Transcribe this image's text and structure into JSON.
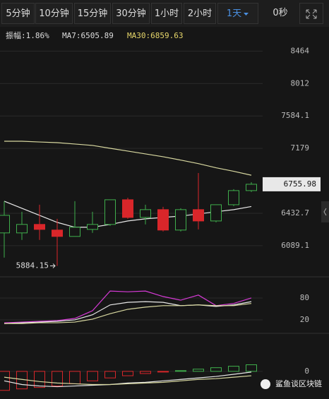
{
  "toolbar": {
    "tabs": [
      "5分钟",
      "10分钟",
      "15分钟",
      "30分钟",
      "1小时",
      "2小时",
      "1天"
    ],
    "active_tab": 6,
    "timer": "0秒"
  },
  "info": {
    "amplitude": "振幅:1.86%",
    "ma7": "MA7:6505.89",
    "ma30": "MA30:6859.63"
  },
  "watermark": "鲨鱼谈区块链",
  "chart_data": [
    {
      "type": "candlestick",
      "log": true,
      "ylim": [
        5790,
        8590
      ],
      "yticks": [
        8464,
        8012,
        7584.1,
        7179,
        6432.7,
        6089.1
      ],
      "up_color": "#3fae4c",
      "down_color": "#d9262a",
      "open": [
        6222,
        6222,
        6312,
        6252,
        6185,
        6259,
        6312,
        6581,
        6387,
        6472,
        6252,
        6472,
        6349,
        6526,
        6684
      ],
      "high": [
        6565,
        6449,
        6526,
        6372,
        6565,
        6449,
        6581,
        6604,
        6526,
        6503,
        6487,
        6886,
        6526,
        6700,
        6780
      ],
      "low": [
        5967,
        6148,
        6148,
        5884.15,
        6185,
        6222,
        6297,
        6372,
        6312,
        6237,
        6237,
        6259,
        6334,
        6511,
        6668
      ],
      "close": [
        6410,
        6312,
        6259,
        6185,
        6282,
        6312,
        6581,
        6387,
        6472,
        6252,
        6472,
        6349,
        6526,
        6684,
        6755.98
      ],
      "lines": [
        {
          "color": "#d8d8a0",
          "values": [
            7266,
            7266,
            7257,
            7249,
            7232,
            7215,
            7180,
            7146,
            7112,
            7078,
            7038,
            6996,
            6947,
            6906,
            6860
          ]
        },
        {
          "color": "#e8e8e8",
          "values": [
            6565,
            6487,
            6410,
            6334,
            6282,
            6282,
            6312,
            6349,
            6372,
            6387,
            6402,
            6425,
            6449,
            6472,
            6506
          ]
        }
      ]
    },
    {
      "type": "line",
      "ylim": [
        -13,
        138
      ],
      "yticks": [
        80,
        20
      ],
      "series": [
        {
          "color": "#d63ad6",
          "values": [
            12,
            14,
            16,
            18,
            24,
            45,
            99,
            97,
            99,
            84,
            74,
            88,
            59,
            65,
            80
          ]
        },
        {
          "color": "#e8e8e8",
          "values": [
            10,
            12,
            14,
            16,
            20,
            34,
            61,
            68,
            70,
            68,
            59,
            61,
            57,
            61,
            70
          ]
        },
        {
          "color": "#d8d8a0",
          "values": [
            10,
            10,
            12,
            12,
            14,
            22,
            37,
            49,
            55,
            59,
            59,
            61,
            59,
            59,
            65
          ]
        }
      ]
    },
    {
      "type": "bar",
      "ylim": [
        -33,
        52
      ],
      "yticks": [
        0
      ],
      "up_color": "#3fae4c",
      "down_color": "#d9262a",
      "values": [
        -26,
        -24,
        -22,
        -20,
        -17,
        -13,
        -9,
        -6,
        -3,
        -1,
        1,
        3,
        5,
        7,
        9
      ],
      "series": [
        {
          "color": "#e8e8e8",
          "values": [
            -13,
            -18,
            -20,
            -21,
            -20,
            -19,
            -18,
            -16,
            -15,
            -13,
            -11,
            -9,
            -7,
            -4,
            -1
          ]
        },
        {
          "color": "#d8d8a0",
          "values": [
            -8,
            -11,
            -14,
            -16,
            -17,
            -18,
            -18,
            -17,
            -16,
            -15,
            -13,
            -11,
            -10,
            -8,
            -6
          ]
        }
      ]
    }
  ]
}
